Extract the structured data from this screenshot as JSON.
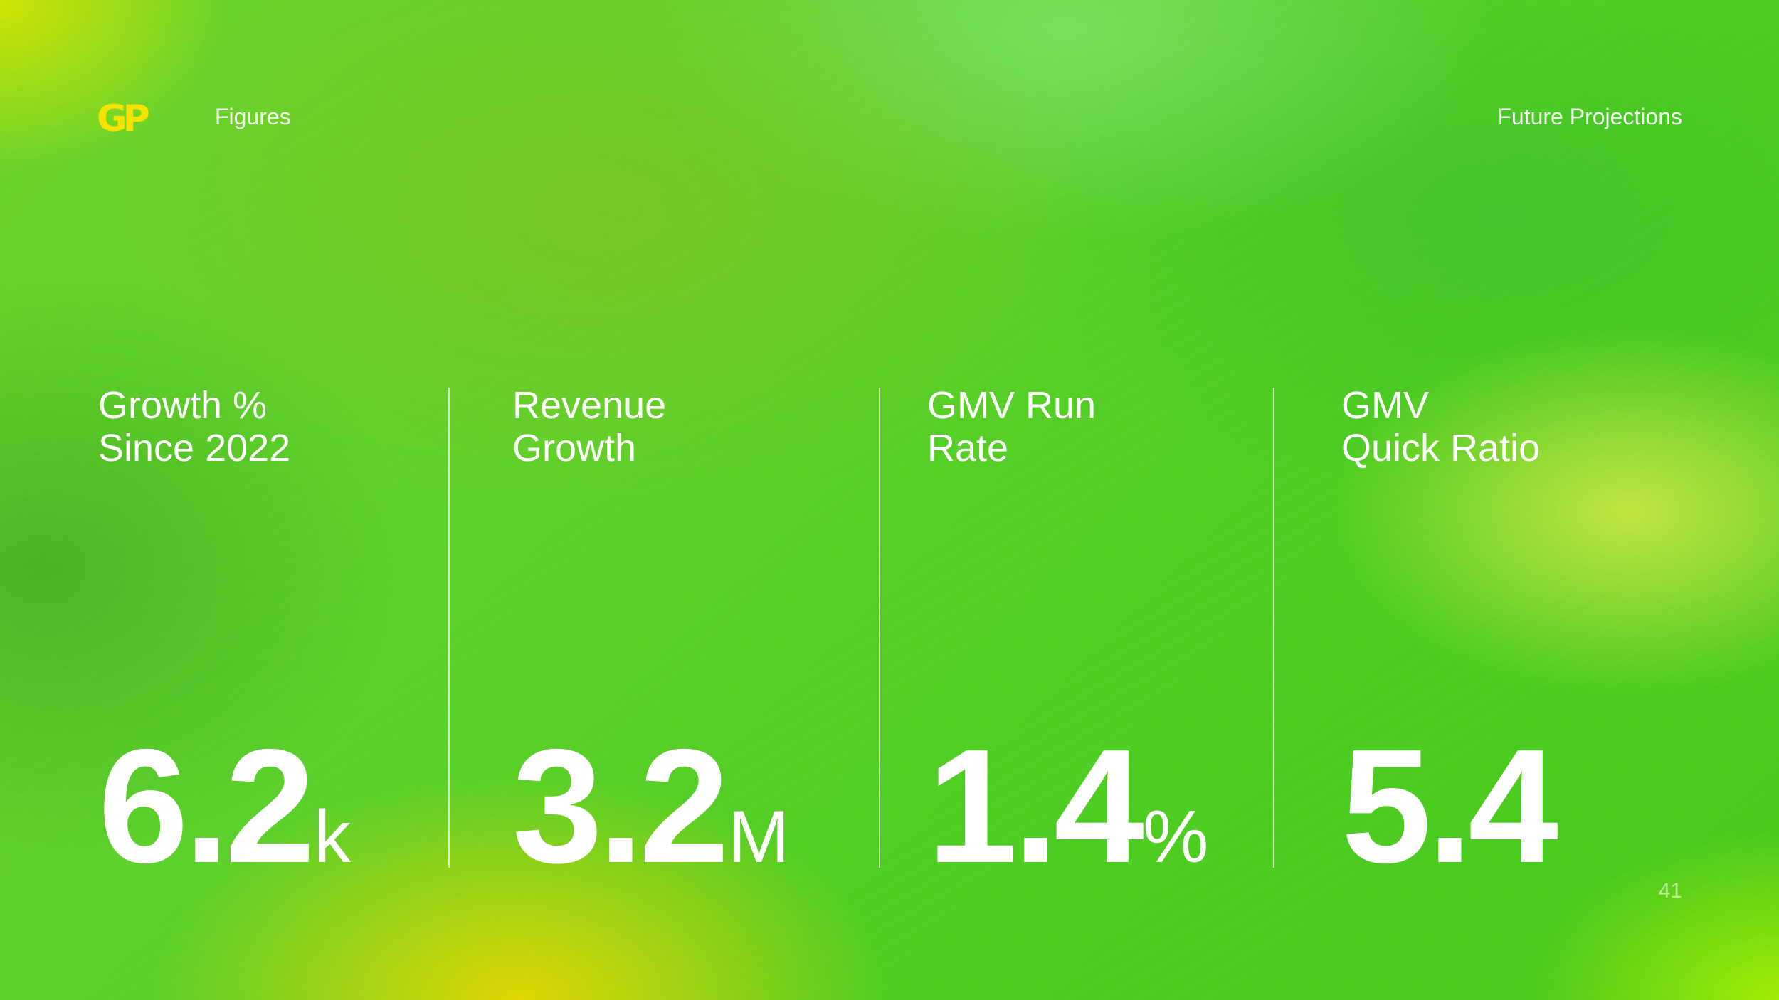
{
  "brand": {
    "logo_text": "GP",
    "logo_color": "#f5e400"
  },
  "header": {
    "left_label": "Figures",
    "right_label": "Future Projections"
  },
  "metrics": [
    {
      "label_line1": "Growth %",
      "label_line2": "Since 2022",
      "value": "6.2",
      "unit": "k"
    },
    {
      "label_line1": "Revenue",
      "label_line2": "Growth",
      "value": "3.2",
      "unit": "M"
    },
    {
      "label_line1": "GMV Run",
      "label_line2": "Rate",
      "value": "1.4",
      "unit": "%"
    },
    {
      "label_line1": "GMV",
      "label_line2": "Quick Ratio",
      "value": "5.4",
      "unit": ""
    }
  ],
  "footer": {
    "page_number": "41"
  },
  "colors": {
    "background_primary": "#5ed12c",
    "text": "#ffffff"
  }
}
